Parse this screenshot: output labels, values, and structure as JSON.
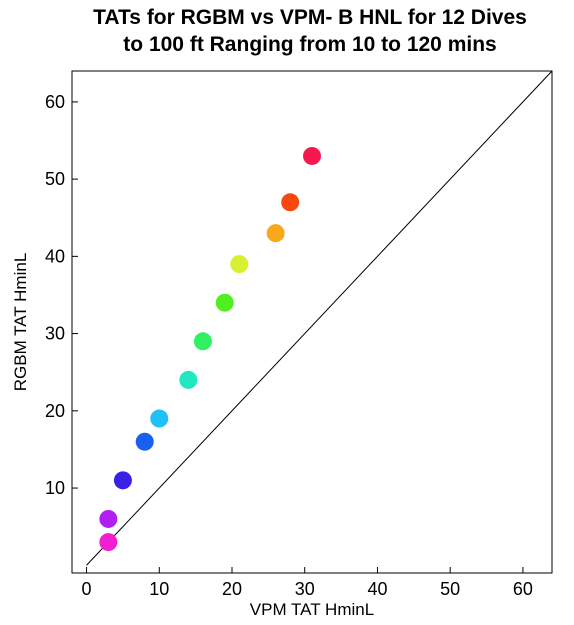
{
  "chart_data": {
    "type": "scatter",
    "title_lines": [
      "TATs for RGBM vs VPM- B HNL for 12 Dives",
      "to 100 ft Ranging from 10 to 120 mins"
    ],
    "xlabel": "VPM TAT HminL",
    "ylabel": "RGBM TAT HminL",
    "xlim": [
      -2,
      64
    ],
    "ylim": [
      -1,
      64
    ],
    "xticks": [
      0,
      10,
      20,
      30,
      40,
      50,
      60
    ],
    "yticks": [
      10,
      20,
      30,
      40,
      50,
      60
    ],
    "grid": false,
    "reference_line": {
      "from": [
        0,
        0
      ],
      "to": [
        64,
        64
      ]
    },
    "points": [
      {
        "x": 3,
        "y": 3,
        "color": "#f020d0"
      },
      {
        "x": 3,
        "y": 6,
        "color": "#b020f0"
      },
      {
        "x": 5,
        "y": 11,
        "color": "#3a20e8"
      },
      {
        "x": 8,
        "y": 16,
        "color": "#1a60f0"
      },
      {
        "x": 10,
        "y": 19,
        "color": "#20c0f8"
      },
      {
        "x": 14,
        "y": 24,
        "color": "#20e8c0"
      },
      {
        "x": 16,
        "y": 29,
        "color": "#30f060"
      },
      {
        "x": 19,
        "y": 34,
        "color": "#50f020"
      },
      {
        "x": 21,
        "y": 39,
        "color": "#d8f030"
      },
      {
        "x": 26,
        "y": 43,
        "color": "#f8a818"
      },
      {
        "x": 28,
        "y": 47,
        "color": "#f84810"
      },
      {
        "x": 31,
        "y": 53,
        "color": "#f81850"
      }
    ]
  }
}
